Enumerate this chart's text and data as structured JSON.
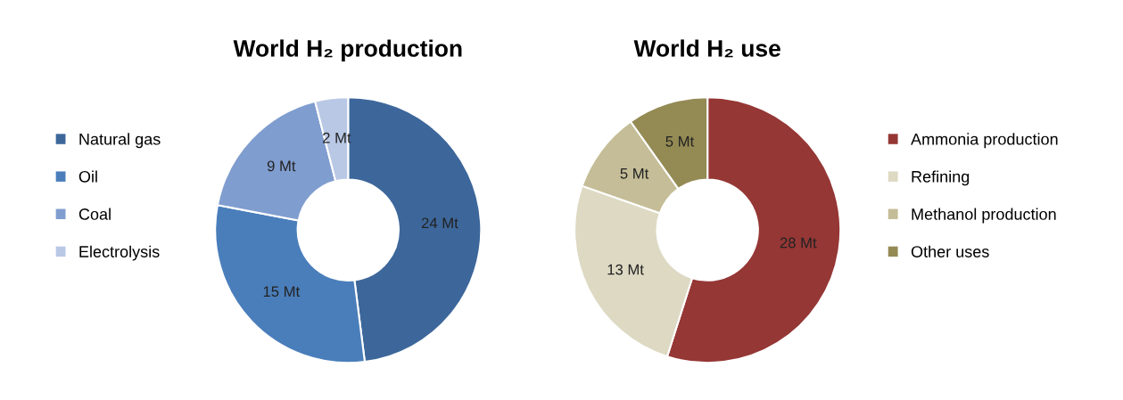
{
  "chart_data": [
    {
      "type": "donut",
      "title": "World H₂ production",
      "categories": [
        "Natural gas",
        "Oil",
        "Coal",
        "Electrolysis"
      ],
      "values": [
        24,
        15,
        9,
        2
      ],
      "colors": [
        "#3d679b",
        "#4a7ebb",
        "#809dcf",
        "#b9c8e5"
      ],
      "value_labels": [
        "24 Mt",
        "15 Mt",
        "9 Mt",
        "2 Mt"
      ],
      "legend": "left"
    },
    {
      "type": "donut",
      "title": "World H₂ use",
      "categories": [
        "Ammonia production",
        "Refining",
        "Methanol production",
        "Other uses"
      ],
      "values": [
        28,
        13,
        5,
        5
      ],
      "colors": [
        "#953735",
        "#ddd9c3",
        "#c4bd97",
        "#948a54"
      ],
      "value_labels": [
        "28 Mt",
        "13 Mt",
        "5 Mt",
        "5 Mt"
      ],
      "legend": "right"
    }
  ]
}
